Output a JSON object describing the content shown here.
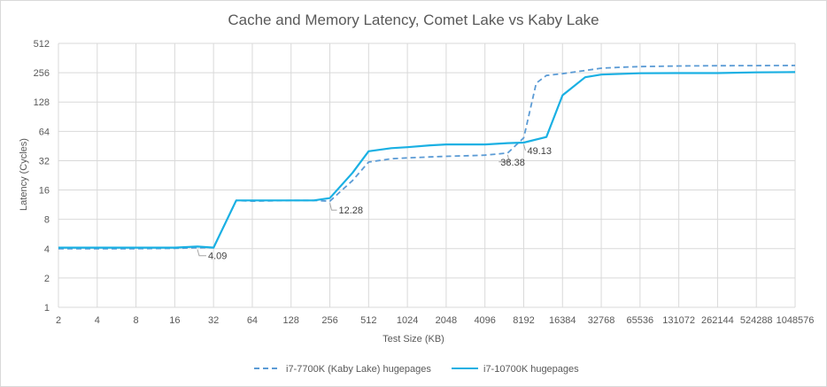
{
  "chart_data": {
    "type": "line",
    "title": "Cache and Memory Latency, Comet Lake vs Kaby Lake",
    "xlabel": "Test Size (KB)",
    "ylabel": "Latency (Cycles)",
    "x_scale": "log2",
    "y_scale": "log2",
    "xlim": [
      2,
      1048576
    ],
    "ylim": [
      1,
      512
    ],
    "x_ticks": [
      "2",
      "4",
      "8",
      "16",
      "32",
      "64",
      "128",
      "256",
      "512",
      "1024",
      "2048",
      "4096",
      "8192",
      "16384",
      "32768",
      "65536",
      "131072",
      "262144",
      "524288",
      "1048576"
    ],
    "y_ticks": [
      "1",
      "2",
      "4",
      "8",
      "16",
      "32",
      "64",
      "128",
      "256",
      "512"
    ],
    "grid": true,
    "legend_position": "bottom",
    "series": [
      {
        "name": "i7-7700K (Kaby Lake) hugepages",
        "color": "#5b9bd5",
        "dash": "dashed",
        "x": [
          2,
          4,
          8,
          16,
          24,
          32,
          48,
          64,
          96,
          128,
          192,
          256,
          384,
          512,
          768,
          1024,
          1536,
          2048,
          3072,
          4096,
          6144,
          8192,
          10240,
          12288,
          16384,
          24576,
          32768,
          49152,
          65536,
          131072,
          262144,
          524288,
          1048576
        ],
        "y": [
          4.0,
          4.0,
          4.0,
          4.03,
          4.09,
          4.1,
          12.5,
          12.3,
          12.4,
          12.5,
          12.5,
          12.28,
          20,
          31,
          33.5,
          34.2,
          35,
          35.5,
          36,
          36.5,
          38.38,
          55,
          200,
          240,
          250,
          270,
          285,
          292,
          296,
          300,
          302,
          303,
          304
        ]
      },
      {
        "name": "i7-10700K hugepages",
        "color": "#1ab0e3",
        "dash": "solid",
        "x": [
          2,
          4,
          8,
          16,
          24,
          32,
          48,
          64,
          96,
          128,
          192,
          256,
          384,
          512,
          768,
          1024,
          1536,
          2048,
          3072,
          4096,
          6144,
          8192,
          12288,
          16384,
          24576,
          32768,
          65536,
          131072,
          262144,
          524288,
          1048576
        ],
        "y": [
          4.1,
          4.1,
          4.1,
          4.1,
          4.2,
          4.1,
          12.5,
          12.5,
          12.5,
          12.5,
          12.5,
          13.2,
          24,
          40,
          43,
          44,
          46,
          47,
          47,
          47,
          48.5,
          49.13,
          56,
          150,
          230,
          245,
          253,
          254,
          254,
          258,
          260
        ]
      }
    ],
    "annotations": [
      {
        "text": "4.09",
        "x": 24,
        "y": 4.09
      },
      {
        "text": "12.28",
        "x": 256,
        "y": 12.28
      },
      {
        "text": "38.38",
        "x": 6144,
        "y": 38.38
      },
      {
        "text": "49.13",
        "x": 8192,
        "y": 49.13
      }
    ]
  }
}
